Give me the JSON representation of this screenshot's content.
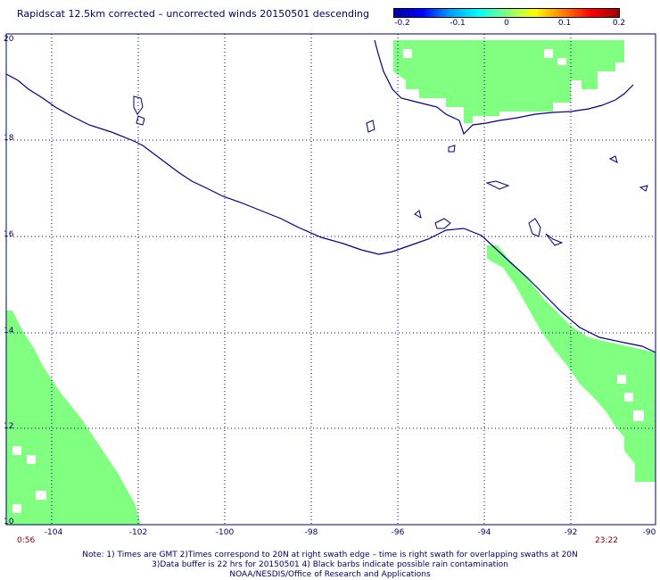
{
  "title": "Rapidscat 12.5km corrected – uncorrected winds 20150501 descending",
  "colorbar": {
    "ticks": [
      "-0.2",
      "-0.1",
      "0",
      "0.1",
      "0.2"
    ],
    "colors": [
      "#0000a0",
      "#0000ff",
      "#00a0ff",
      "#00ffff",
      "#80ff80",
      "#ffff00",
      "#ff8000",
      "#ff0000",
      "#a00000"
    ]
  },
  "map": {
    "lat_labels": [
      "20",
      "18",
      "16",
      "14",
      "12",
      "10"
    ],
    "lon_labels": [
      "-104",
      "-102",
      "-100",
      "-98",
      "-96",
      "-94",
      "-92",
      "-90"
    ],
    "lat_range": [
      10,
      20
    ],
    "lon_range": [
      -105,
      -90
    ],
    "coast_color": "#000080",
    "swath_color": "#80ff80",
    "grid": true
  },
  "times": {
    "left": "0:56",
    "right": "23:22"
  },
  "notes": [
    "Note: 1) Times are GMT 2)Times correspond to 20N at right swath edge – time is right swath for overlapping swaths at 20N",
    "3)Data buffer is 22 hrs for 20150501 4) Black barbs indicate possible rain contamination",
    "NOAA/NESDIS/Office of Research and Applications"
  ]
}
